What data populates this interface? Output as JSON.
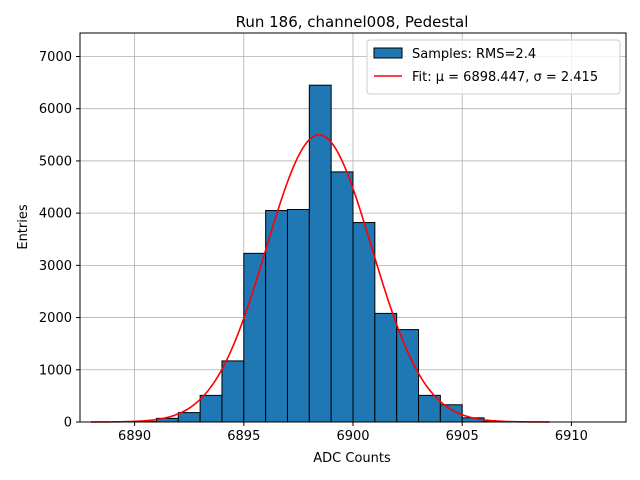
{
  "chart_data": {
    "type": "bar",
    "title": "Run 186, channel008, Pedestal",
    "xlabel": "ADC Counts",
    "ylabel": "Entries",
    "xlim": [
      6887.5,
      6912.5
    ],
    "ylim": [
      0,
      7450
    ],
    "grid": true,
    "legend_position": "top-right",
    "x_ticks": [
      6890,
      6895,
      6900,
      6905,
      6910
    ],
    "y_ticks": [
      0,
      1000,
      2000,
      3000,
      4000,
      5000,
      6000,
      7000
    ],
    "bins": [
      {
        "x0": 6890,
        "x1": 6891,
        "value": 10
      },
      {
        "x0": 6891,
        "x1": 6892,
        "value": 70
      },
      {
        "x0": 6892,
        "x1": 6893,
        "value": 180
      },
      {
        "x0": 6893,
        "x1": 6894,
        "value": 510
      },
      {
        "x0": 6894,
        "x1": 6895,
        "value": 1170
      },
      {
        "x0": 6895,
        "x1": 6896,
        "value": 3230
      },
      {
        "x0": 6896,
        "x1": 6897,
        "value": 4050
      },
      {
        "x0": 6897,
        "x1": 6898,
        "value": 4070
      },
      {
        "x0": 6898,
        "x1": 6899,
        "value": 6450
      },
      {
        "x0": 6899,
        "x1": 6900,
        "value": 4790
      },
      {
        "x0": 6900,
        "x1": 6901,
        "value": 3820
      },
      {
        "x0": 6901,
        "x1": 6902,
        "value": 2080
      },
      {
        "x0": 6902,
        "x1": 6903,
        "value": 1770
      },
      {
        "x0": 6903,
        "x1": 6904,
        "value": 510
      },
      {
        "x0": 6904,
        "x1": 6905,
        "value": 330
      },
      {
        "x0": 6905,
        "x1": 6906,
        "value": 80
      },
      {
        "x0": 6906,
        "x1": 6907,
        "value": 10
      }
    ],
    "fit": {
      "mu": 6898.447,
      "sigma": 2.415,
      "amplitude": 5500,
      "x_range": [
        6888,
        6909
      ]
    },
    "series": [
      {
        "name": "Samples: RMS=2.4",
        "type": "histogram",
        "color": "#1f77b4",
        "edge": "#000000"
      },
      {
        "name": "Fit: μ = 6898.447, σ = 2.415",
        "type": "line",
        "color": "#ff0000"
      }
    ]
  }
}
